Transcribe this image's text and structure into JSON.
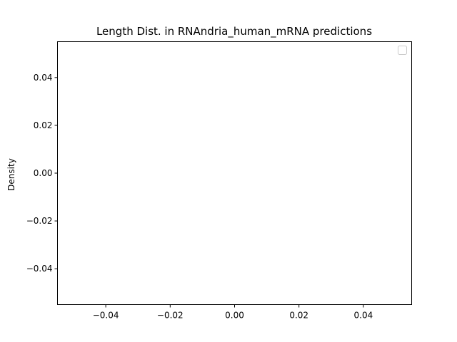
{
  "chart_data": {
    "type": "line",
    "title": "Length Dist. in RNAndria_human_mRNA predictions",
    "xlabel": "",
    "ylabel": "Density",
    "xlim": [
      -0.055,
      0.055
    ],
    "ylim": [
      -0.055,
      0.055
    ],
    "x_ticks": [
      -0.04,
      -0.02,
      0.0,
      0.02,
      0.04
    ],
    "x_tick_labels": [
      "−0.04",
      "−0.02",
      "0.00",
      "0.02",
      "0.04"
    ],
    "y_ticks": [
      -0.04,
      -0.02,
      0.0,
      0.02,
      0.04
    ],
    "y_tick_labels": [
      "−0.04",
      "−0.02",
      "0.00",
      "0.02",
      "0.04"
    ],
    "series": [],
    "grid": false,
    "legend": {
      "placement": "upper-right",
      "entries": []
    }
  }
}
